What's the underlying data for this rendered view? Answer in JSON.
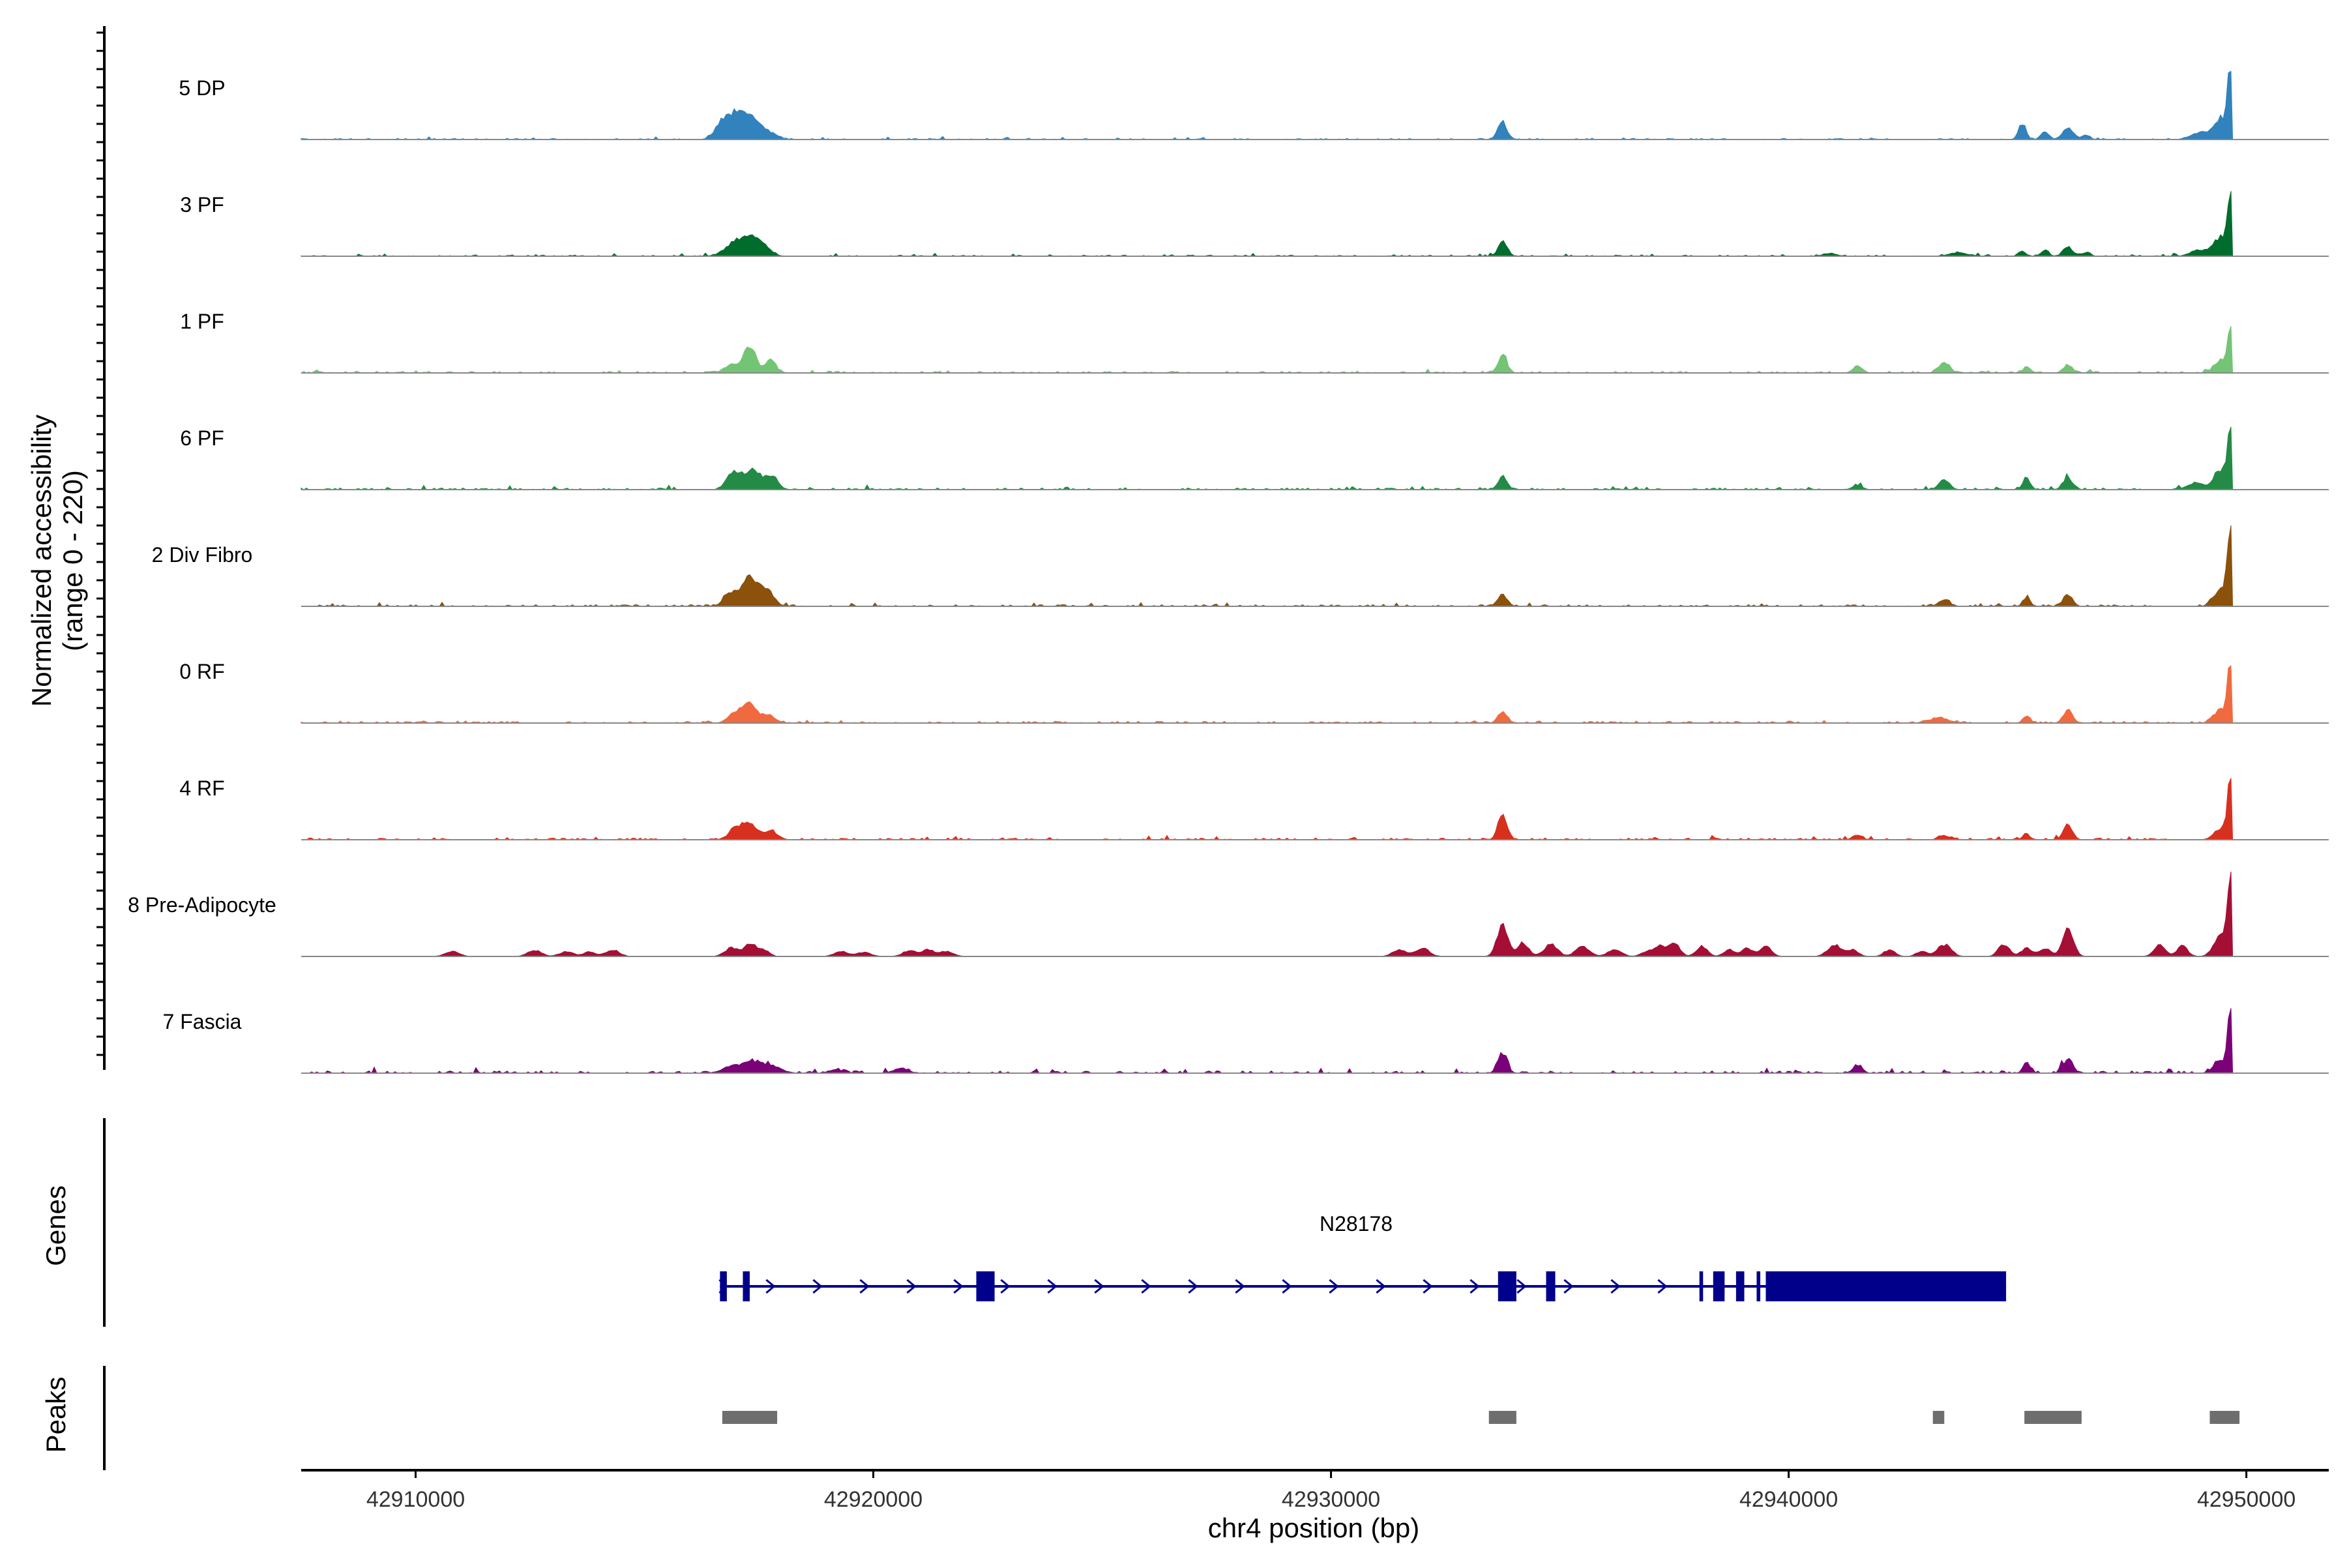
{
  "chart_data": {
    "type": "area",
    "title": "",
    "ylabel_line1": "Normalized accessibility",
    "ylabel_line2": "(range 0 - 220)",
    "xlabel": "chr4 position (bp)",
    "xlim": [
      42907500,
      42951800
    ],
    "ylim": [
      0,
      220
    ],
    "x_ticks": [
      42910000,
      42920000,
      42930000,
      42940000,
      42950000
    ],
    "x_tick_labels": [
      "42910000",
      "42920000",
      "42930000",
      "42940000",
      "42950000"
    ],
    "tracks": [
      {
        "name": "5 DP",
        "color": "#3182BD",
        "baseline": 2,
        "noise": 2,
        "peaks": [
          [
            42916750,
            180,
            55
          ],
          [
            42917050,
            180,
            60
          ],
          [
            42917350,
            160,
            45
          ],
          [
            42917650,
            200,
            25
          ],
          [
            42933750,
            100,
            50
          ],
          [
            42945100,
            80,
            50
          ],
          [
            42945600,
            80,
            22
          ],
          [
            42946100,
            120,
            35
          ],
          [
            42946500,
            80,
            15
          ],
          [
            42949000,
            200,
            20
          ],
          [
            42949450,
            150,
            60
          ],
          [
            42949650,
            60,
            200
          ]
        ]
      },
      {
        "name": "3 PF",
        "color": "#006D2C",
        "baseline": 2,
        "noise": 2,
        "peaks": [
          [
            42916900,
            200,
            25
          ],
          [
            42917250,
            220,
            45
          ],
          [
            42917550,
            180,
            30
          ],
          [
            42933750,
            100,
            42
          ],
          [
            42940900,
            150,
            8
          ],
          [
            42943700,
            200,
            10
          ],
          [
            42945100,
            80,
            15
          ],
          [
            42945600,
            80,
            18
          ],
          [
            42946100,
            100,
            30
          ],
          [
            42946500,
            80,
            12
          ],
          [
            42949000,
            200,
            18
          ],
          [
            42949450,
            150,
            55
          ],
          [
            42949650,
            60,
            190
          ]
        ]
      },
      {
        "name": "1 PF",
        "color": "#74C476",
        "baseline": 3,
        "noise": 2,
        "peaks": [
          [
            42916900,
            150,
            25
          ],
          [
            42917300,
            130,
            80
          ],
          [
            42917750,
            120,
            35
          ],
          [
            42933750,
            100,
            50
          ],
          [
            42941500,
            100,
            20
          ],
          [
            42943400,
            120,
            30
          ],
          [
            42945200,
            80,
            18
          ],
          [
            42946100,
            100,
            25
          ],
          [
            42949450,
            150,
            40
          ],
          [
            42949650,
            60,
            130
          ]
        ]
      },
      {
        "name": "6 PF",
        "color": "#238B45",
        "baseline": 3,
        "noise": 3,
        "peaks": [
          [
            42916950,
            150,
            55
          ],
          [
            42917350,
            150,
            60
          ],
          [
            42917750,
            150,
            40
          ],
          [
            42933750,
            100,
            40
          ],
          [
            42941500,
            100,
            15
          ],
          [
            42943400,
            120,
            25
          ],
          [
            42945200,
            80,
            35
          ],
          [
            42946100,
            100,
            35
          ],
          [
            42948900,
            200,
            18
          ],
          [
            42949450,
            150,
            60
          ],
          [
            42949650,
            60,
            175
          ]
        ]
      },
      {
        "name": "2 Div Fibro",
        "color": "#8C510A",
        "baseline": 3,
        "noise": 3,
        "peaks": [
          [
            42916900,
            160,
            40
          ],
          [
            42917300,
            160,
            80
          ],
          [
            42917650,
            160,
            50
          ],
          [
            42933750,
            100,
            35
          ],
          [
            42943400,
            120,
            20
          ],
          [
            42945200,
            80,
            25
          ],
          [
            42946100,
            100,
            35
          ],
          [
            42949450,
            150,
            55
          ],
          [
            42949650,
            60,
            220
          ]
        ]
      },
      {
        "name": "0 RF",
        "color": "#F16A3F",
        "baseline": 3,
        "noise": 2,
        "peaks": [
          [
            42917000,
            160,
            30
          ],
          [
            42917300,
            140,
            55
          ],
          [
            42917700,
            150,
            25
          ],
          [
            42933750,
            100,
            35
          ],
          [
            42943300,
            200,
            15
          ],
          [
            42945200,
            80,
            20
          ],
          [
            42946100,
            100,
            40
          ],
          [
            42949450,
            150,
            40
          ],
          [
            42949650,
            60,
            180
          ]
        ]
      },
      {
        "name": "4 RF",
        "color": "#D7301F",
        "baseline": 3,
        "noise": 3,
        "peaks": [
          [
            42917000,
            150,
            35
          ],
          [
            42917300,
            150,
            45
          ],
          [
            42917750,
            150,
            25
          ],
          [
            42933750,
            100,
            80
          ],
          [
            42941500,
            100,
            15
          ],
          [
            42943400,
            120,
            12
          ],
          [
            42945200,
            80,
            15
          ],
          [
            42946100,
            100,
            45
          ],
          [
            42949450,
            150,
            35
          ],
          [
            42949650,
            60,
            160
          ]
        ]
      },
      {
        "name": "8 Pre-Adipocyte",
        "color": "#A50F35",
        "baseline": 0,
        "noise": 0,
        "peaks": [
          [
            42910800,
            150,
            15
          ],
          [
            42912600,
            150,
            18
          ],
          [
            42913300,
            150,
            15
          ],
          [
            42913800,
            120,
            15
          ],
          [
            42914300,
            150,
            20
          ],
          [
            42916900,
            150,
            25
          ],
          [
            42917300,
            120,
            40
          ],
          [
            42917600,
            120,
            20
          ],
          [
            42919300,
            150,
            15
          ],
          [
            42919800,
            150,
            12
          ],
          [
            42920800,
            150,
            18
          ],
          [
            42921200,
            120,
            20
          ],
          [
            42921600,
            150,
            15
          ],
          [
            42931500,
            150,
            20
          ],
          [
            42932000,
            150,
            25
          ],
          [
            42933750,
            120,
            90
          ],
          [
            42934200,
            120,
            40
          ],
          [
            42934800,
            150,
            35
          ],
          [
            42935500,
            150,
            30
          ],
          [
            42936200,
            150,
            20
          ],
          [
            42936900,
            120,
            15
          ],
          [
            42937200,
            120,
            30
          ],
          [
            42937500,
            120,
            40
          ],
          [
            42938100,
            120,
            30
          ],
          [
            42938700,
            120,
            20
          ],
          [
            42939100,
            120,
            25
          ],
          [
            42939500,
            120,
            30
          ],
          [
            42941000,
            150,
            35
          ],
          [
            42941400,
            120,
            20
          ],
          [
            42942200,
            120,
            20
          ],
          [
            42942900,
            120,
            15
          ],
          [
            42943400,
            150,
            35
          ],
          [
            42944700,
            120,
            35
          ],
          [
            42945200,
            120,
            25
          ],
          [
            42945600,
            120,
            25
          ],
          [
            42946100,
            120,
            80
          ],
          [
            42948100,
            120,
            35
          ],
          [
            42948600,
            120,
            30
          ],
          [
            42949450,
            150,
            70
          ],
          [
            42949650,
            60,
            220
          ]
        ]
      },
      {
        "name": "7 Fascia",
        "color": "#7A0177",
        "baseline": 4,
        "noise": 4,
        "peaks": [
          [
            42916900,
            200,
            20
          ],
          [
            42917350,
            200,
            35
          ],
          [
            42917800,
            200,
            20
          ],
          [
            42919200,
            150,
            10
          ],
          [
            42920600,
            150,
            15
          ],
          [
            42933750,
            100,
            60
          ],
          [
            42941500,
            100,
            25
          ],
          [
            42945200,
            80,
            30
          ],
          [
            42946100,
            100,
            45
          ],
          [
            42949450,
            150,
            40
          ],
          [
            42949650,
            60,
            160
          ]
        ]
      }
    ],
    "gene_track": {
      "label": "Genes",
      "gene_name": "N28178",
      "strand": "+",
      "start": 42916650,
      "end": 42944750,
      "exons": [
        [
          42916650,
          42916800
        ],
        [
          42917150,
          42917300
        ],
        [
          42922250,
          42922650
        ],
        [
          42933650,
          42934050
        ],
        [
          42934700,
          42934900
        ],
        [
          42938050,
          42938130
        ],
        [
          42938350,
          42938600
        ],
        [
          42938850,
          42939030
        ],
        [
          42939300,
          42939380
        ],
        [
          42939500,
          42944750
        ]
      ]
    },
    "peak_track": {
      "label": "Peaks",
      "peaks": [
        [
          42916700,
          42917900
        ],
        [
          42933450,
          42934050
        ],
        [
          42943150,
          42943400
        ],
        [
          42945150,
          42946400
        ],
        [
          42949200,
          42949850
        ]
      ]
    }
  }
}
